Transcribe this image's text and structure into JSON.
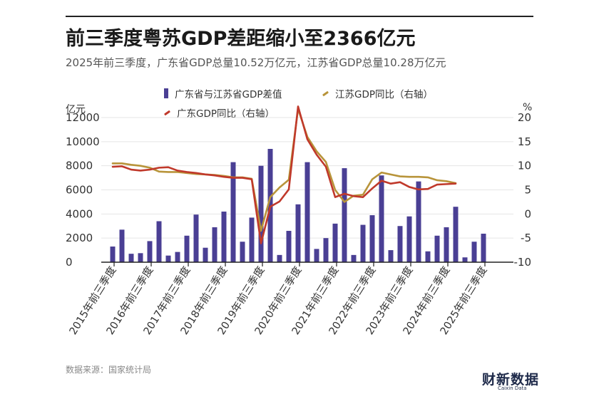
{
  "header": {
    "title": "前三季度粤苏GDP差距缩小至2366亿元",
    "subtitle": "2025年前三季度，广东省GDP总量10.52万亿元，江苏省GDP总量10.28万亿元"
  },
  "legend": {
    "bar_label": "广东省与江苏省GDP差值",
    "js_label": "江苏GDP同比（右轴）",
    "gd_label": "广东GDP同比（右轴）"
  },
  "axes": {
    "left_unit": "亿元",
    "right_unit": "%"
  },
  "footer": {
    "source": "数据来源：国家统计局",
    "brand": "财新数据",
    "brand_sub": "Caixin Data"
  },
  "colors": {
    "bar": "#4a3f94",
    "jiangsu_line": "#b8943a",
    "guangdong_line": "#c0392b",
    "grid": "#e5e5e5"
  },
  "chart_data": {
    "type": "bar",
    "x_labels": [
      "2015年前三季度",
      "2016年前三季度",
      "2017年前三季度",
      "2018年前三季度",
      "2019年前三季度",
      "2020年前三季度",
      "2021年前三季度",
      "2022年前三季度",
      "2023年前三季度",
      "2024年前三季度",
      "2025年前三季度"
    ],
    "quarters_per_label": 4,
    "label_quarter_index": [
      0,
      4,
      8,
      12,
      16,
      20,
      24,
      28,
      32,
      36,
      40
    ],
    "left_axis": {
      "ticks": [
        0,
        2000,
        4000,
        6000,
        8000,
        10000,
        12000
      ],
      "range": [
        0,
        12000
      ]
    },
    "right_axis": {
      "ticks": [
        -10,
        -5,
        0,
        5,
        10,
        15,
        20
      ],
      "range": [
        -10,
        20
      ]
    },
    "series": [
      {
        "name": "广东省与江苏省GDP差值",
        "type": "bar",
        "axis": "left",
        "values": [
          1300,
          2700,
          700,
          750,
          1750,
          3400,
          550,
          850,
          2200,
          3950,
          1200,
          2900,
          4200,
          8300,
          1700,
          3700,
          8000,
          9400,
          600,
          2600,
          4800,
          8300,
          1100,
          2000,
          3200,
          7800,
          600,
          3100,
          3900,
          7200,
          1000,
          3000,
          3800,
          6700,
          900,
          2200,
          2900,
          4600,
          400,
          1700,
          2366
        ]
      },
      {
        "name": "江苏GDP同比（右轴）",
        "type": "line",
        "axis": "right",
        "values": [
          10.5,
          10.5,
          10.2,
          10.0,
          9.6,
          8.8,
          8.7,
          8.7,
          8.5,
          8.3,
          8.2,
          8.1,
          7.9,
          7.6,
          7.6,
          7.3,
          -3.5,
          3.5,
          5.5,
          7.1,
          21.8,
          16.0,
          13.0,
          10.8,
          5.0,
          2.5,
          3.8,
          4.0,
          7.2,
          8.6,
          8.2,
          7.8,
          7.7,
          7.7,
          7.6,
          7.0,
          6.8,
          6.4
        ]
      },
      {
        "name": "广东GDP同比（右轴）",
        "type": "line",
        "axis": "right",
        "values": [
          9.8,
          9.9,
          9.2,
          9.0,
          9.2,
          9.6,
          9.7,
          9.0,
          8.7,
          8.5,
          8.2,
          8.0,
          7.7,
          7.5,
          7.5,
          7.2,
          -6.1,
          1.5,
          2.6,
          5.1,
          22.3,
          15.5,
          12.3,
          9.8,
          3.5,
          4.2,
          3.7,
          3.5,
          5.3,
          6.9,
          6.3,
          6.6,
          5.6,
          5.1,
          5.2,
          6.1,
          6.2,
          6.3
        ]
      }
    ]
  }
}
